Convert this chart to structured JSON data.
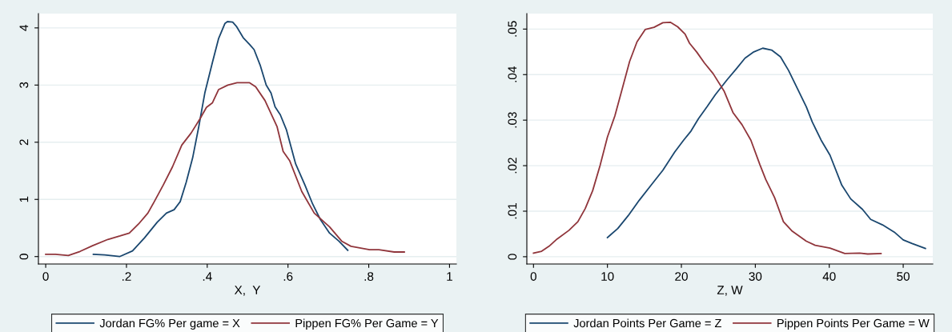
{
  "chart_data": [
    {
      "type": "line",
      "xlabel": "X,  Y",
      "xlim": [
        -0.018,
        1.017
      ],
      "ylim": [
        -0.13,
        4.25
      ],
      "xticks": [
        0,
        {
          "value": 0.2,
          "label": ".2"
        },
        {
          "value": 0.4,
          "label": ".4"
        },
        {
          "value": 0.6,
          "label": ".6"
        },
        {
          "value": 0.8,
          "label": ".8"
        },
        1
      ],
      "yticks": [
        0,
        1,
        2,
        3,
        4
      ],
      "grid": "y",
      "legend": "bottom",
      "series": [
        {
          "name": "Jordan FG% Per game = X",
          "color": "#1a476f",
          "x": [
            0.118,
            0.146,
            0.183,
            0.215,
            0.245,
            0.276,
            0.299,
            0.318,
            0.333,
            0.348,
            0.364,
            0.379,
            0.394,
            0.413,
            0.428,
            0.444,
            0.45,
            0.463,
            0.473,
            0.489,
            0.505,
            0.516,
            0.531,
            0.546,
            0.558,
            0.568,
            0.581,
            0.596,
            0.619,
            0.642,
            0.661,
            0.68,
            0.703,
            0.726,
            0.748
          ],
          "values": [
            0.04,
            0.03,
            0,
            0.1,
            0.33,
            0.6,
            0.76,
            0.82,
            0.96,
            1.3,
            1.73,
            2.27,
            2.86,
            3.4,
            3.81,
            4.08,
            4.11,
            4.1,
            4.02,
            3.83,
            3.71,
            3.62,
            3.35,
            3.0,
            2.86,
            2.62,
            2.48,
            2.22,
            1.62,
            1.25,
            0.92,
            0.65,
            0.41,
            0.27,
            0.11
          ]
        },
        {
          "name": "Pippen FG% Per Game = Y",
          "color": "#90353b",
          "x": [
            0,
            0.024,
            0.056,
            0.085,
            0.116,
            0.154,
            0.184,
            0.207,
            0.23,
            0.253,
            0.268,
            0.291,
            0.314,
            0.337,
            0.36,
            0.383,
            0.398,
            0.413,
            0.428,
            0.451,
            0.474,
            0.505,
            0.52,
            0.543,
            0.573,
            0.588,
            0.604,
            0.634,
            0.665,
            0.703,
            0.733,
            0.756,
            0.802,
            0.825,
            0.863,
            0.888
          ],
          "values": [
            0.04,
            0.04,
            0.02,
            0.09,
            0.19,
            0.3,
            0.36,
            0.41,
            0.57,
            0.76,
            0.95,
            1.25,
            1.57,
            1.95,
            2.16,
            2.42,
            2.61,
            2.69,
            2.92,
            3.0,
            3.04,
            3.04,
            2.97,
            2.73,
            2.27,
            1.84,
            1.68,
            1.14,
            0.76,
            0.52,
            0.27,
            0.18,
            0.12,
            0.12,
            0.08,
            0.08
          ]
        }
      ]
    },
    {
      "type": "line",
      "xlabel": "Z, W",
      "xlim": [
        -0.9,
        54
      ],
      "ylim": [
        -0.0016,
        0.0534
      ],
      "xticks": [
        0,
        10,
        20,
        30,
        40,
        50
      ],
      "yticks": [
        0,
        {
          "value": 0.01,
          "label": ".01"
        },
        {
          "value": 0.02,
          "label": ".02"
        },
        {
          "value": 0.03,
          "label": ".03"
        },
        {
          "value": 0.04,
          "label": ".04"
        },
        {
          "value": 0.05,
          "label": ".05"
        }
      ],
      "grid": "y",
      "legend": "bottom",
      "series": [
        {
          "name": "Jordan Points Per Game = Z",
          "color": "#1a476f",
          "x": [
            10.0,
            11.4,
            12.8,
            14.3,
            15.9,
            17.5,
            19.1,
            20.3,
            21.3,
            22.3,
            23.5,
            24.6,
            26.2,
            27.4,
            28.6,
            29.8,
            31.0,
            32.2,
            33.4,
            34.5,
            35.7,
            36.9,
            37.7,
            38.9,
            40.1,
            41.7,
            42.9,
            44.5,
            45.6,
            47.2,
            48.8,
            50.0,
            51.2,
            53.0
          ],
          "values": [
            0.0042,
            0.0062,
            0.009,
            0.0124,
            0.0157,
            0.019,
            0.023,
            0.0256,
            0.0276,
            0.0303,
            0.033,
            0.0356,
            0.0389,
            0.0412,
            0.0436,
            0.045,
            0.0458,
            0.0454,
            0.0439,
            0.0409,
            0.0369,
            0.0329,
            0.0296,
            0.0256,
            0.0223,
            0.0157,
            0.0127,
            0.0104,
            0.0082,
            0.007,
            0.0054,
            0.0037,
            0.0029,
            0.0018
          ]
        },
        {
          "name": "Pippen Points Per Game = W",
          "color": "#90353b",
          "x": [
            0,
            1.1,
            2.1,
            3.2,
            4.8,
            6.0,
            7.0,
            8.0,
            9.0,
            10.0,
            11.0,
            12.0,
            13.0,
            14.0,
            15.1,
            16.3,
            17.5,
            18.5,
            19.5,
            20.5,
            21.1,
            22.1,
            23.1,
            24.3,
            25.8,
            27.0,
            28.2,
            29.4,
            30.6,
            31.4,
            32.6,
            33.8,
            35.0,
            36.9,
            38.1,
            40.1,
            42.1,
            44.1,
            45.2,
            47.0
          ],
          "values": [
            0.0008,
            0.0012,
            0.0023,
            0.0039,
            0.0058,
            0.0077,
            0.0106,
            0.0145,
            0.02,
            0.0263,
            0.0309,
            0.0369,
            0.0429,
            0.0472,
            0.0499,
            0.0504,
            0.0514,
            0.0515,
            0.0505,
            0.0489,
            0.0469,
            0.0449,
            0.0426,
            0.0402,
            0.0363,
            0.0316,
            0.029,
            0.0256,
            0.0203,
            0.017,
            0.013,
            0.0077,
            0.0056,
            0.0034,
            0.0025,
            0.0019,
            0.0007,
            0.0008,
            0.0006,
            0.0007
          ]
        }
      ]
    }
  ]
}
